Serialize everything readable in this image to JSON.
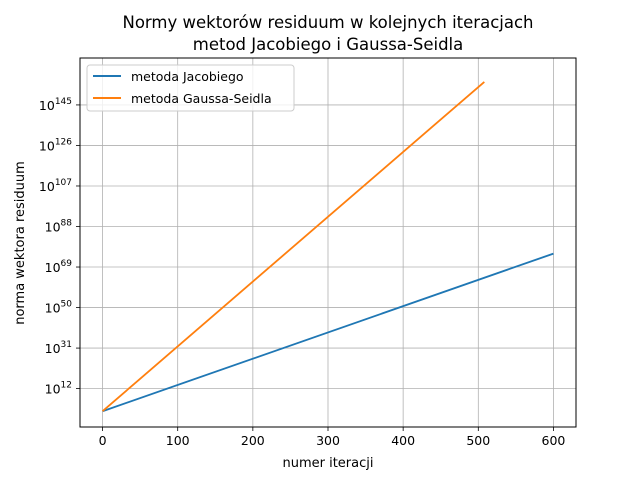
{
  "chart_data": {
    "type": "line",
    "title_lines": [
      "Normy wektorów residuum w kolejnych iteracjach",
      "metod Jacobiego i Gaussa-Seidla"
    ],
    "xlabel": "numer iteracji",
    "ylabel": "norma wektora residuum",
    "yscale": "log",
    "x_ticks": [
      0,
      100,
      200,
      300,
      400,
      500,
      600
    ],
    "x_tick_labels": [
      "0",
      "100",
      "200",
      "300",
      "400",
      "500",
      "600"
    ],
    "y_tick_exponents": [
      12,
      31,
      50,
      69,
      88,
      107,
      126,
      145
    ],
    "y_tick_labels": [
      "1012",
      "1031",
      "1050",
      "1069",
      "1088",
      "10107",
      "10126",
      "10145"
    ],
    "xlim": [
      -30,
      630
    ],
    "ylim_log10": [
      -6,
      167
    ],
    "grid": true,
    "legend_position": "upper-left",
    "series": [
      {
        "name": "metoda Jacobiego",
        "color": "#1f77b4",
        "x": [
          0,
          600
        ],
        "y_log10": [
          1.4,
          75.3
        ]
      },
      {
        "name": "metoda Gaussa-Seidla",
        "color": "#ff7f0e",
        "x": [
          0,
          508
        ],
        "y_log10": [
          1.4,
          155.8
        ]
      }
    ]
  }
}
